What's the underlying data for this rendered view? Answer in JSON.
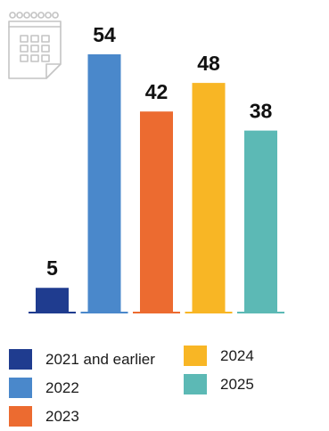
{
  "chart_data": {
    "type": "bar",
    "categories": [
      "2021 and earlier",
      "2022",
      "2023",
      "2024",
      "2025"
    ],
    "values": [
      5,
      54,
      42,
      48,
      38
    ],
    "colors": [
      "#1f3c8f",
      "#4a88cb",
      "#ec6b30",
      "#f8b625",
      "#5cb9b5"
    ],
    "title": "",
    "xlabel": "",
    "ylabel": "",
    "ylim": [
      0,
      54
    ],
    "grid": false,
    "data_labels": true,
    "legend_position": "bottom"
  },
  "decoration": {
    "icon": "calendar-icon"
  },
  "legend": {
    "items": [
      {
        "label": "2021 and earlier",
        "color": "#1f3c8f"
      },
      {
        "label": "2022",
        "color": "#4a88cb"
      },
      {
        "label": "2023",
        "color": "#ec6b30"
      },
      {
        "label": "2024",
        "color": "#f8b625"
      },
      {
        "label": "2025",
        "color": "#5cb9b5"
      }
    ]
  }
}
